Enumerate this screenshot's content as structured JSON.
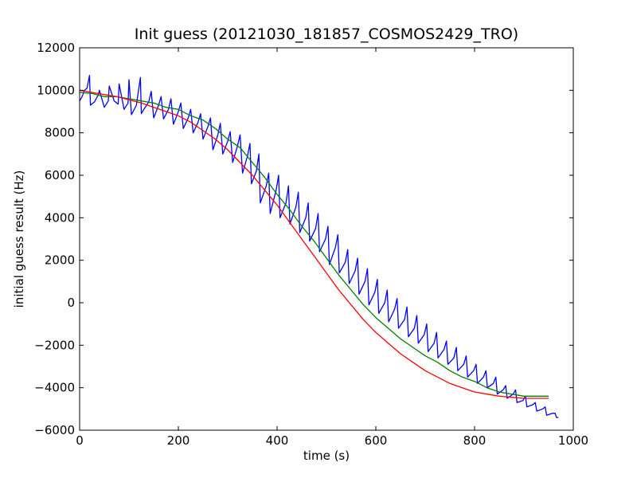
{
  "chart_data": {
    "type": "line",
    "title": "Init guess (20121030_181857_COSMOS2429_TRO)",
    "xlabel": "time (s)",
    "ylabel": "initial guess result (Hz)",
    "xlim": [
      0,
      1000
    ],
    "ylim": [
      -6000,
      12000
    ],
    "xticks": [
      0,
      200,
      400,
      600,
      800,
      1000
    ],
    "yticks": [
      -6000,
      -4000,
      -2000,
      0,
      2000,
      4000,
      6000,
      8000,
      10000,
      12000
    ],
    "grid": false,
    "legend": "none",
    "series": [
      {
        "color": "#0000ff",
        "x": [
          0,
          5,
          10,
          15,
          20,
          22,
          30,
          38,
          40,
          50,
          58,
          60,
          70,
          78,
          80,
          90,
          98,
          100,
          105,
          115,
          123,
          125,
          130,
          140,
          145,
          150,
          160,
          165,
          170,
          180,
          185,
          190,
          200,
          205,
          210,
          220,
          225,
          230,
          240,
          245,
          250,
          260,
          265,
          270,
          280,
          285,
          290,
          300,
          305,
          310,
          320,
          325,
          330,
          340,
          345,
          348,
          358,
          363,
          366,
          378,
          383,
          386,
          398,
          403,
          406,
          418,
          423,
          426,
          438,
          443,
          446,
          458,
          463,
          466,
          478,
          483,
          486,
          498,
          503,
          506,
          518,
          523,
          526,
          538,
          543,
          546,
          558,
          563,
          566,
          578,
          583,
          586,
          598,
          603,
          606,
          618,
          623,
          626,
          638,
          643,
          646,
          658,
          663,
          666,
          678,
          683,
          686,
          698,
          703,
          706,
          718,
          723,
          726,
          738,
          743,
          746,
          758,
          763,
          766,
          778,
          783,
          786,
          798,
          803,
          806,
          818,
          823,
          826,
          838,
          843,
          846,
          858,
          863,
          866,
          878,
          883,
          886,
          898,
          903,
          906,
          918,
          923,
          926,
          938,
          943,
          946,
          958,
          963,
          966,
          970
        ],
        "y": [
          9500,
          9700,
          10000,
          10100,
          10700,
          9300,
          9450,
          9800,
          10000,
          9200,
          9500,
          10200,
          9500,
          9350,
          10300,
          9100,
          9400,
          10500,
          8850,
          9300,
          10600,
          8900,
          9100,
          9450,
          9950,
          8700,
          9300,
          9700,
          8650,
          9100,
          9600,
          8400,
          9000,
          9400,
          8200,
          8700,
          9100,
          8000,
          8500,
          8900,
          7700,
          8300,
          8700,
          7200,
          7900,
          8450,
          7000,
          7600,
          8050,
          6600,
          7400,
          7900,
          6100,
          6900,
          7500,
          5600,
          6200,
          7000,
          4700,
          5500,
          6100,
          4200,
          5300,
          6000,
          4000,
          4700,
          5500,
          3700,
          4500,
          5200,
          3300,
          4000,
          4700,
          2900,
          3500,
          4200,
          2400,
          3000,
          3600,
          1800,
          2600,
          3200,
          1400,
          1900,
          2500,
          900,
          1500,
          2100,
          400,
          1000,
          1600,
          -100,
          500,
          1100,
          -500,
          0,
          600,
          -900,
          -300,
          200,
          -1200,
          -800,
          -200,
          -1600,
          -1200,
          -600,
          -1900,
          -1500,
          -1000,
          -2300,
          -1900,
          -1400,
          -2600,
          -2200,
          -1800,
          -2900,
          -2600,
          -2100,
          -3200,
          -2900,
          -2500,
          -3500,
          -3200,
          -2900,
          -3800,
          -3500,
          -3200,
          -4000,
          -3800,
          -3500,
          -4300,
          -4100,
          -3900,
          -4500,
          -4300,
          -4100,
          -4700,
          -4600,
          -4400,
          -4900,
          -4800,
          -4700,
          -5100,
          -5000,
          -4900,
          -5300,
          -5200,
          -5200,
          -5400,
          -5400
        ]
      },
      {
        "color": "#008000",
        "x": [
          0,
          25,
          50,
          75,
          100,
          125,
          150,
          175,
          200,
          225,
          250,
          275,
          300,
          325,
          350,
          375,
          400,
          425,
          450,
          475,
          500,
          525,
          550,
          575,
          600,
          625,
          650,
          675,
          700,
          725,
          750,
          775,
          800,
          825,
          850,
          875,
          900,
          925,
          950
        ],
        "y": [
          9900,
          9850,
          9700,
          9700,
          9600,
          9500,
          9400,
          9200,
          9100,
          8800,
          8600,
          8200,
          7700,
          7300,
          6600,
          5900,
          5100,
          4400,
          3600,
          2900,
          2100,
          1300,
          600,
          -100,
          -700,
          -1200,
          -1700,
          -2100,
          -2500,
          -2800,
          -3200,
          -3500,
          -3700,
          -4000,
          -4200,
          -4300,
          -4400,
          -4400,
          -4400
        ]
      },
      {
        "color": "#ff0000",
        "x": [
          0,
          25,
          50,
          75,
          100,
          125,
          150,
          175,
          200,
          225,
          250,
          275,
          300,
          325,
          350,
          375,
          400,
          425,
          450,
          475,
          500,
          525,
          550,
          575,
          600,
          625,
          650,
          675,
          700,
          725,
          750,
          775,
          800,
          825,
          850,
          875,
          900,
          925,
          950
        ],
        "y": [
          10000,
          9900,
          9800,
          9700,
          9550,
          9400,
          9200,
          9000,
          8800,
          8500,
          8100,
          7700,
          7200,
          6600,
          6000,
          5300,
          4600,
          3800,
          3000,
          2200,
          1400,
          600,
          -100,
          -800,
          -1400,
          -1900,
          -2400,
          -2800,
          -3200,
          -3500,
          -3800,
          -4000,
          -4200,
          -4300,
          -4400,
          -4450,
          -4500,
          -4500,
          -4500
        ]
      }
    ]
  }
}
